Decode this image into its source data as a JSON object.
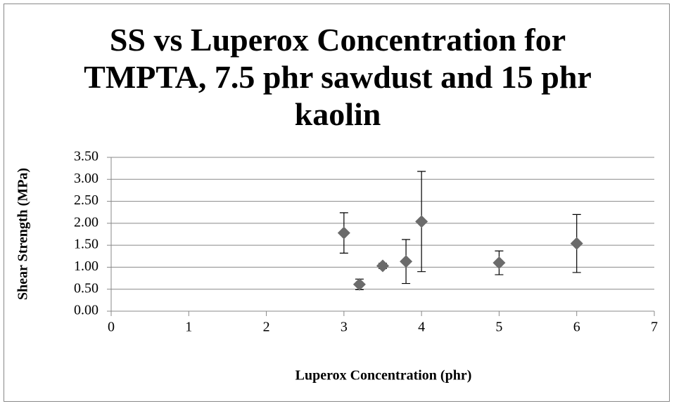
{
  "chart_data": {
    "type": "scatter",
    "title": "SS vs Luperox Concentration for TMPTA, 7.5 phr sawdust and 15 phr kaolin",
    "x_label": "Luperox Concentration (phr)",
    "y_label": "Shear Strength (MPa)",
    "x": [
      3,
      3.2,
      3.5,
      3.8,
      4,
      5,
      6
    ],
    "values": [
      1.78,
      0.61,
      1.03,
      1.13,
      2.04,
      1.1,
      1.54
    ],
    "errors": [
      0.46,
      0.12,
      0.06,
      0.5,
      1.14,
      0.27,
      0.66
    ],
    "color": "#6b6b6b",
    "xlim": [
      0,
      7
    ],
    "xticks": [
      0,
      1,
      2,
      3,
      4,
      5,
      6,
      7
    ],
    "ylim": [
      0,
      3.5
    ],
    "yticks": [
      {
        "value": 0,
        "label": "0.00"
      },
      {
        "value": 0.5,
        "label": "0.50"
      },
      {
        "value": 1,
        "label": "1.00"
      },
      {
        "value": 1.5,
        "label": "1.50"
      },
      {
        "value": 2,
        "label": "2.00"
      },
      {
        "value": 2.5,
        "label": "2.50"
      },
      {
        "value": 3,
        "label": "3.00"
      },
      {
        "value": 3.5,
        "label": "3.50"
      }
    ],
    "grid": true
  }
}
